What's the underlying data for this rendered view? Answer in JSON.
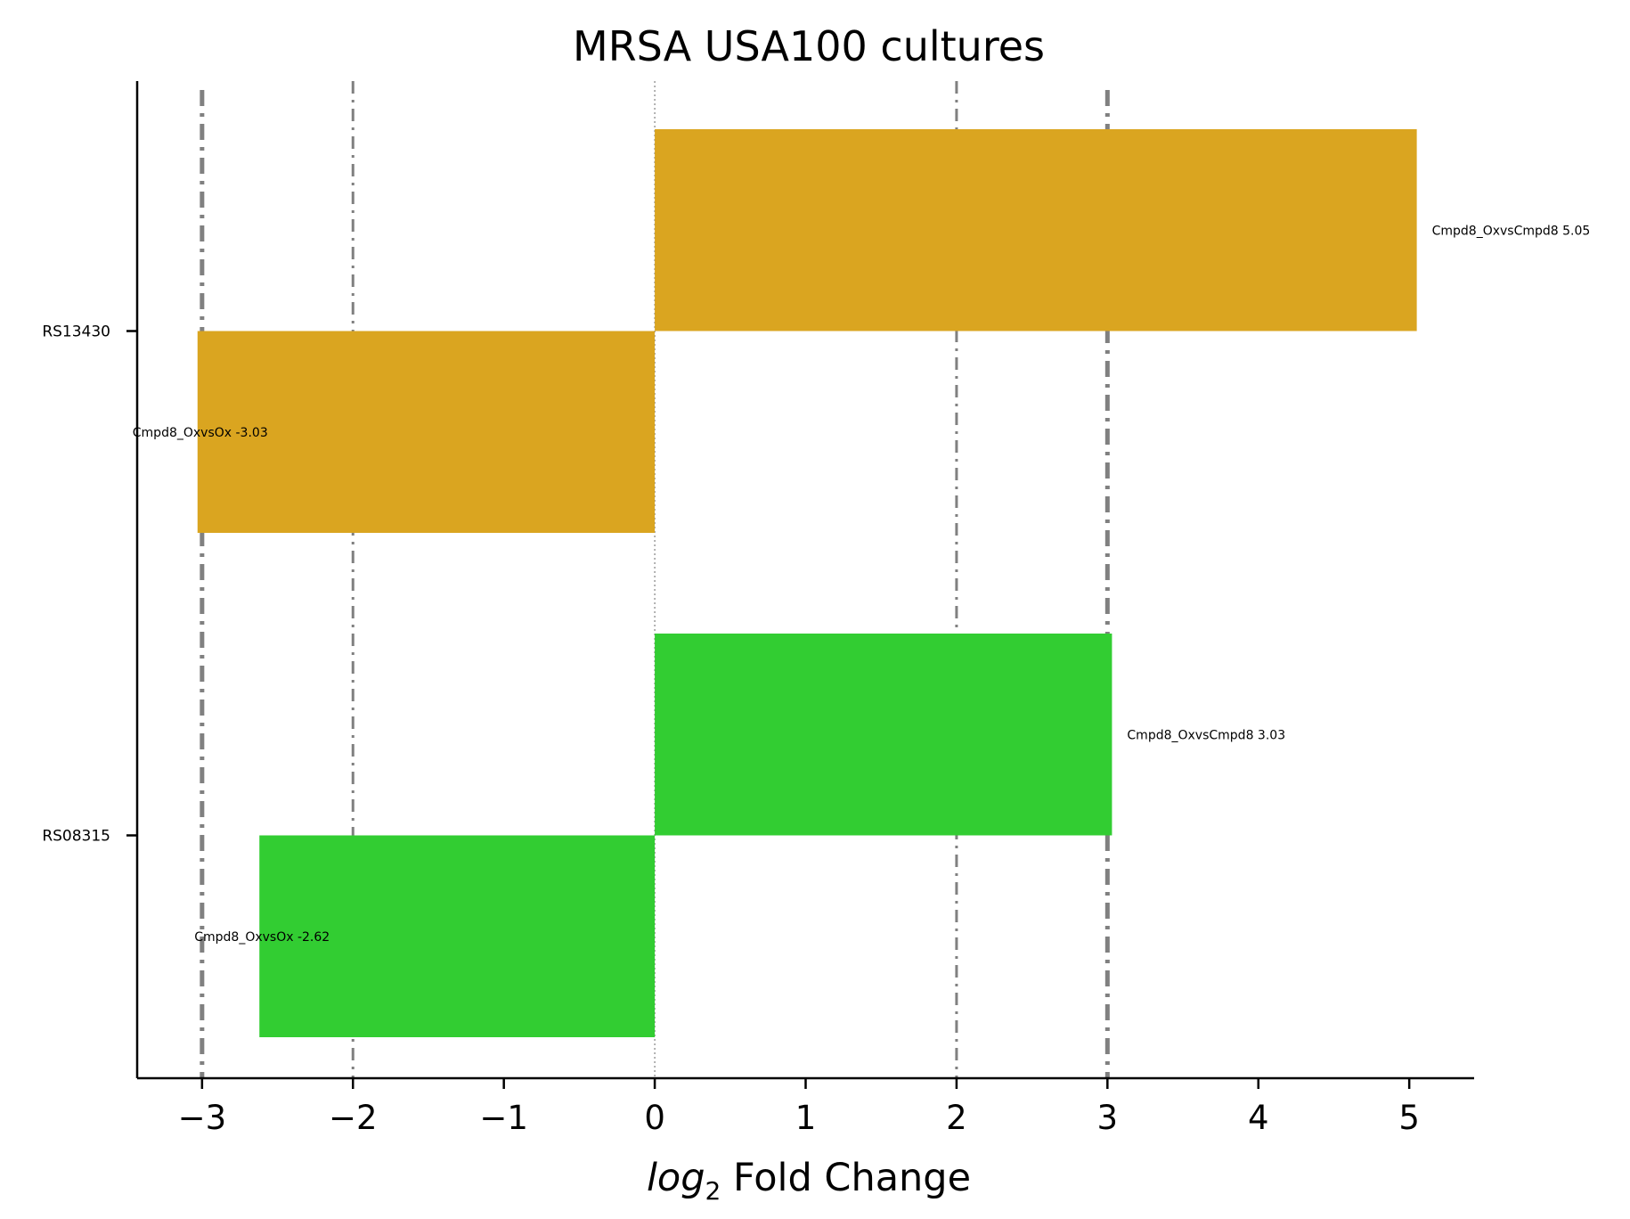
{
  "chart_data": {
    "type": "bar",
    "orientation": "horizontal",
    "title": "MRSA USA100 cultures",
    "xlabel_italic": "log",
    "xlabel_sub": "2",
    "xlabel_rest": " Fold Change",
    "ylabel": "",
    "xlim": [
      -3.43,
      5.43
    ],
    "xticks": [
      -3,
      -2,
      -1,
      0,
      1,
      2,
      3,
      4,
      5
    ],
    "xtick_labels": [
      "−3",
      "−2",
      "−1",
      "0",
      "1",
      "2",
      "3",
      "4",
      "5"
    ],
    "categories": [
      "RS13430",
      "RS08315"
    ],
    "bars": [
      {
        "category": "RS13430",
        "label": "Cmpd8_OxvsCmpd8 5.05",
        "value": 5.05,
        "color": "#DAA520"
      },
      {
        "category": "RS13430",
        "label": "Cmpd8_OxvsOx -3.03",
        "value": -3.03,
        "color": "#DAA520"
      },
      {
        "category": "RS08315",
        "label": "Cmpd8_OxvsCmpd8 3.03",
        "value": 3.03,
        "color": "#32CD32"
      },
      {
        "category": "RS08315",
        "label": "Cmpd8_OxvsOx -2.62",
        "value": -2.62,
        "color": "#32CD32"
      }
    ],
    "reference_lines": [
      {
        "x": -3,
        "style": "dashdot",
        "weight": "thick"
      },
      {
        "x": -2,
        "style": "dashdot",
        "weight": "thin"
      },
      {
        "x": 0,
        "style": "dotted",
        "weight": "hair"
      },
      {
        "x": 2,
        "style": "dashdot",
        "weight": "thin"
      },
      {
        "x": 3,
        "style": "dashdot",
        "weight": "thick"
      }
    ],
    "reference_line_color": "#808080",
    "grid": false,
    "legend": "none"
  }
}
